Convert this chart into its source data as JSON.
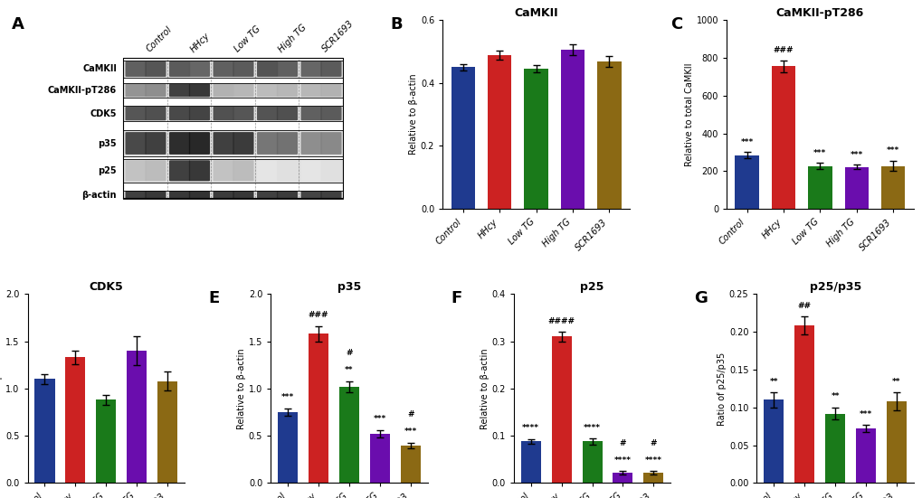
{
  "categories": [
    "Control",
    "HHcy",
    "Low TG",
    "High TG",
    "SCR1693"
  ],
  "bar_colors": [
    "#1f3a8f",
    "#cc2222",
    "#1a7a1a",
    "#6a0dad",
    "#8b6914"
  ],
  "panel_B": {
    "title": "CaMKII",
    "ylabel": "Relative to β-actin",
    "ylim": [
      0,
      0.6
    ],
    "yticks": [
      0.0,
      0.2,
      0.4,
      0.6
    ],
    "values": [
      0.45,
      0.488,
      0.445,
      0.505,
      0.468
    ],
    "errors": [
      0.01,
      0.015,
      0.012,
      0.018,
      0.018
    ]
  },
  "panel_C": {
    "title": "CaMKII-pT286",
    "ylabel": "Relative to total CaMKII",
    "ylim": [
      0,
      1000
    ],
    "yticks": [
      0,
      200,
      400,
      600,
      800,
      1000
    ],
    "values": [
      285,
      755,
      228,
      222,
      228
    ],
    "errors": [
      15,
      30,
      15,
      12,
      28
    ],
    "sig_star": [
      "***",
      "",
      "***",
      "***",
      "***"
    ],
    "sig_hash": [
      "",
      "###",
      "",
      "",
      ""
    ]
  },
  "panel_D": {
    "title": "CDK5",
    "ylabel": "Relative to β-actin",
    "ylim": [
      0,
      2.0
    ],
    "yticks": [
      0.0,
      0.5,
      1.0,
      1.5,
      2.0
    ],
    "values": [
      1.1,
      1.33,
      0.88,
      1.4,
      1.08
    ],
    "errors": [
      0.05,
      0.07,
      0.05,
      0.15,
      0.1
    ],
    "sig_star": [
      "",
      "",
      "",
      "",
      ""
    ],
    "sig_hash": [
      "",
      "",
      "",
      "",
      ""
    ]
  },
  "panel_E": {
    "title": "p35",
    "ylabel": "Relative to β-actin",
    "ylim": [
      0,
      2.0
    ],
    "yticks": [
      0.0,
      0.5,
      1.0,
      1.5,
      2.0
    ],
    "values": [
      0.75,
      1.58,
      1.02,
      0.52,
      0.4
    ],
    "errors": [
      0.04,
      0.08,
      0.06,
      0.04,
      0.03
    ],
    "sig_star": [
      "***",
      "",
      "**",
      "***",
      "***"
    ],
    "sig_hash": [
      "",
      "###",
      "#",
      "",
      "#"
    ]
  },
  "panel_F": {
    "title": "p25",
    "ylabel": "Relative to β-actin",
    "ylim": [
      0,
      0.4
    ],
    "yticks": [
      0.0,
      0.1,
      0.2,
      0.3,
      0.4
    ],
    "values": [
      0.088,
      0.31,
      0.088,
      0.022,
      0.022
    ],
    "errors": [
      0.005,
      0.01,
      0.006,
      0.003,
      0.003
    ],
    "sig_star": [
      "****",
      "",
      "****",
      "****",
      "****"
    ],
    "sig_hash": [
      "",
      "####",
      "",
      "#",
      "#"
    ]
  },
  "panel_G": {
    "title": "p25/p35",
    "ylabel": "Ratio of p25/p35",
    "ylim": [
      0,
      0.25
    ],
    "yticks": [
      0.0,
      0.05,
      0.1,
      0.15,
      0.2,
      0.25
    ],
    "values": [
      0.11,
      0.208,
      0.092,
      0.072,
      0.108
    ],
    "errors": [
      0.01,
      0.012,
      0.008,
      0.005,
      0.012
    ],
    "sig_star": [
      "**",
      "",
      "**",
      "***",
      "**"
    ],
    "sig_hash": [
      "",
      "##",
      "",
      "",
      ""
    ]
  },
  "blot_labels": [
    "CaMKII",
    "CaMKII-pT286",
    "CDK5",
    "p35",
    "p25",
    "β-actin"
  ],
  "blot_groups": [
    "Control",
    "HHcy",
    "Low TG",
    "High TG",
    "SCR1693"
  ],
  "figure_bg": "#ffffff",
  "blot_band_intensities": [
    [
      0.68,
      0.72,
      0.7,
      0.65,
      0.68,
      0.7,
      0.73,
      0.68,
      0.65,
      0.7
    ],
    [
      0.45,
      0.48,
      0.82,
      0.85,
      0.32,
      0.3,
      0.28,
      0.3,
      0.3,
      0.32
    ],
    [
      0.72,
      0.75,
      0.78,
      0.8,
      0.74,
      0.72,
      0.73,
      0.75,
      0.68,
      0.7
    ],
    [
      0.78,
      0.82,
      0.9,
      0.92,
      0.82,
      0.84,
      0.58,
      0.6,
      0.48,
      0.5
    ],
    [
      0.25,
      0.28,
      0.82,
      0.85,
      0.25,
      0.28,
      0.1,
      0.12,
      0.1,
      0.12
    ],
    [
      0.82,
      0.85,
      0.85,
      0.88,
      0.84,
      0.86,
      0.82,
      0.84,
      0.8,
      0.82
    ]
  ]
}
